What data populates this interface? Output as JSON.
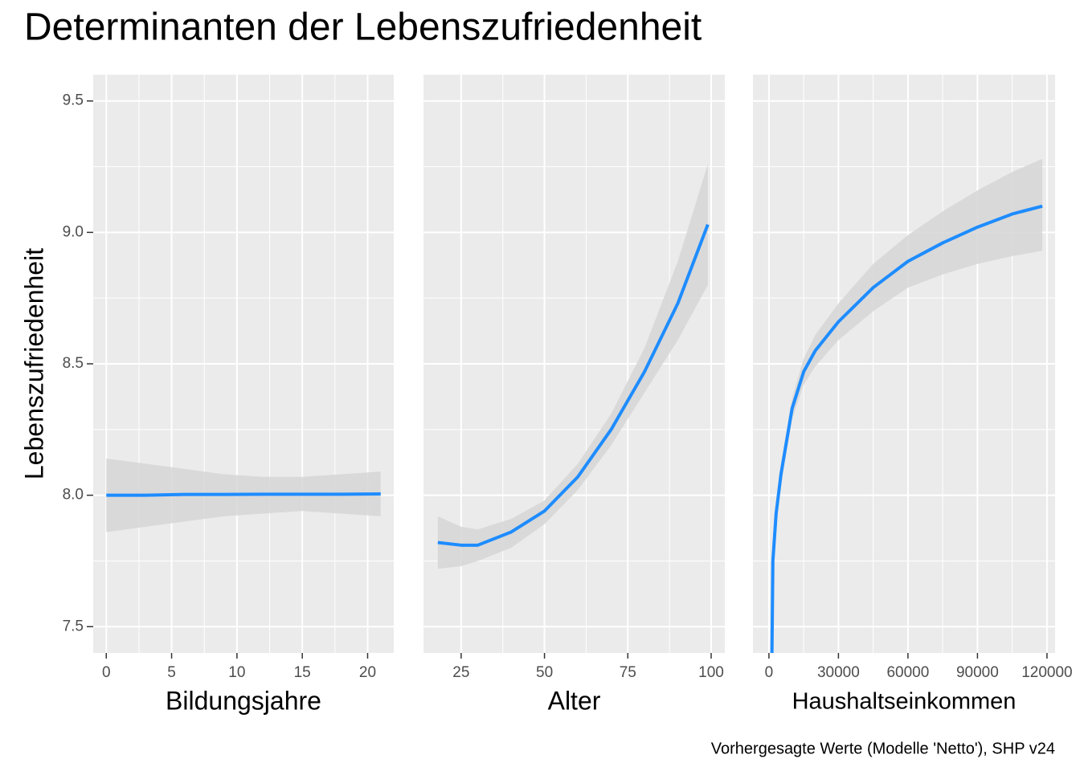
{
  "title": "Determinanten der Lebenszufriedenheit",
  "y_label": "Lebenszufriedenheit",
  "caption": "Vorhergesagte Werte (Modelle 'Netto'), SHP v24",
  "ylim": [
    7.4,
    9.6
  ],
  "yticks": [
    7.5,
    {
      "value": 8,
      "label": "8.0"
    },
    8.5,
    {
      "value": 9,
      "label": "9.0"
    },
    9.5
  ],
  "grid": true,
  "chart_data": [
    {
      "type": "line",
      "x_label": "Bildungsjahre",
      "xlim": [
        -1,
        22
      ],
      "xticks": [
        0,
        5,
        10,
        15,
        20
      ],
      "color": "#1e8cff",
      "band_color": "#d6d6d6",
      "x": [
        0,
        3,
        6,
        9,
        12,
        15,
        18,
        21
      ],
      "values": [
        8.0,
        8.0,
        8.003,
        8.003,
        8.004,
        8.004,
        8.004,
        8.005
      ],
      "upper": [
        8.14,
        8.12,
        8.1,
        8.08,
        8.07,
        8.07,
        8.08,
        8.09
      ],
      "lower": [
        7.86,
        7.88,
        7.9,
        7.92,
        7.93,
        7.94,
        7.93,
        7.92
      ]
    },
    {
      "type": "line",
      "x_label": "Alter",
      "xlim": [
        13.7,
        104.1
      ],
      "xticks": [
        25,
        50,
        75,
        100
      ],
      "color": "#1e8cff",
      "band_color": "#d6d6d6",
      "x": [
        18,
        25,
        30,
        40,
        50,
        60,
        70,
        80,
        90,
        99
      ],
      "values": [
        7.82,
        7.81,
        7.81,
        7.86,
        7.94,
        8.07,
        8.25,
        8.47,
        8.73,
        9.03
      ],
      "upper": [
        7.92,
        7.88,
        7.87,
        7.91,
        7.98,
        8.12,
        8.31,
        8.56,
        8.89,
        9.26
      ],
      "lower": [
        7.72,
        7.73,
        7.75,
        7.8,
        7.89,
        8.02,
        8.19,
        8.39,
        8.59,
        8.8
      ]
    },
    {
      "type": "line",
      "x_label": "Haushaltseinkommen",
      "xlim": [
        -6900,
        123500
      ],
      "xticks": [
        0,
        30000,
        60000,
        90000,
        120000
      ],
      "color": "#1e8cff",
      "band_color": "#d6d6d6",
      "x": [
        1300,
        1700,
        3100,
        5200,
        10000,
        15000,
        20000,
        30000,
        45000,
        60000,
        75000,
        90000,
        105000,
        118000
      ],
      "values": [
        7.4,
        7.75,
        7.93,
        8.08,
        8.33,
        8.47,
        8.55,
        8.66,
        8.79,
        8.89,
        8.96,
        9.02,
        9.07,
        9.1
      ],
      "upper": [
        7.44,
        7.79,
        7.97,
        8.12,
        8.37,
        8.52,
        8.61,
        8.73,
        8.88,
        8.99,
        9.08,
        9.16,
        9.23,
        9.28
      ],
      "lower": [
        7.36,
        7.71,
        7.89,
        8.04,
        8.29,
        8.42,
        8.49,
        8.59,
        8.7,
        8.79,
        8.84,
        8.88,
        8.91,
        8.93
      ]
    }
  ]
}
